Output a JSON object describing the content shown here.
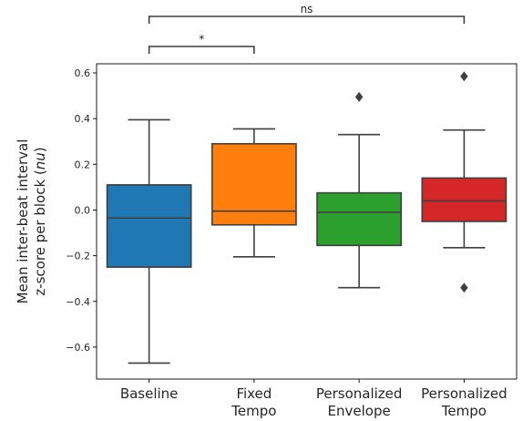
{
  "chart_data": {
    "type": "box",
    "ylabel_lines": [
      "Mean inter-beat interval",
      "z-score per block (nu)"
    ],
    "ylim": [
      -0.74,
      0.64
    ],
    "yticks": [
      -0.6,
      -0.4,
      -0.2,
      0.0,
      0.2,
      0.4,
      0.6
    ],
    "ytick_labels": [
      "−0.6",
      "−0.4",
      "−0.2",
      "0.0",
      "0.2",
      "0.4",
      "0.6"
    ],
    "grid": false,
    "legend": "none",
    "categories": [
      {
        "label_lines": [
          "Baseline"
        ],
        "color": "#1f77b4",
        "whisker_low": -0.67,
        "q1": -0.25,
        "median": -0.035,
        "q3": 0.11,
        "whisker_high": 0.395,
        "outliers": []
      },
      {
        "label_lines": [
          "Fixed",
          "Tempo"
        ],
        "color": "#ff7f0e",
        "whisker_low": -0.205,
        "q1": -0.065,
        "median": -0.005,
        "q3": 0.29,
        "whisker_high": 0.355,
        "outliers": []
      },
      {
        "label_lines": [
          "Personalized",
          "Envelope"
        ],
        "color": "#2ca02c",
        "whisker_low": -0.34,
        "q1": -0.155,
        "median": -0.01,
        "q3": 0.075,
        "whisker_high": 0.33,
        "outliers": [
          0.495
        ]
      },
      {
        "label_lines": [
          "Personalized",
          "Tempo"
        ],
        "color": "#d62728",
        "whisker_low": -0.165,
        "q1": -0.05,
        "median": 0.04,
        "q3": 0.14,
        "whisker_high": 0.35,
        "outliers": [
          0.585,
          -0.34
        ]
      }
    ],
    "annotations": [
      {
        "from": 0,
        "to": 1,
        "label": "*"
      },
      {
        "from": 0,
        "to": 3,
        "label": "ns"
      }
    ]
  }
}
